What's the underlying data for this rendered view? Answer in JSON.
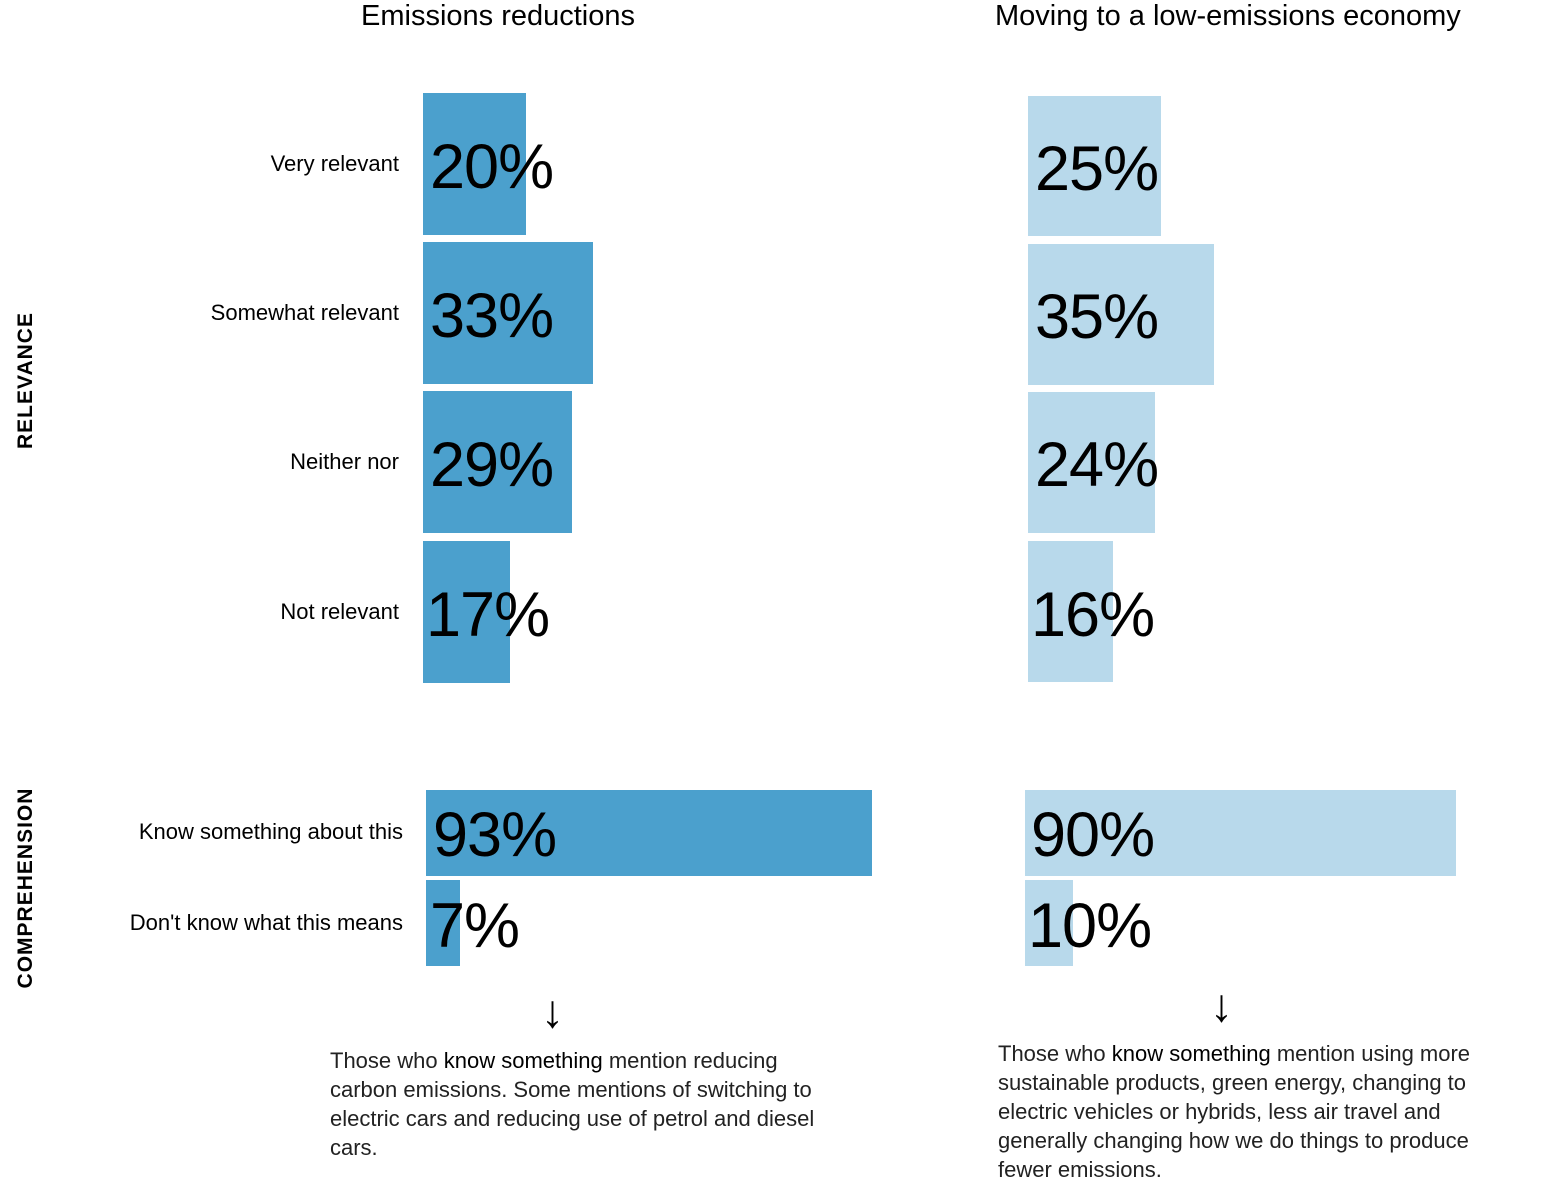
{
  "colors": {
    "left_bar": "#4ba0cd",
    "right_bar": "#b8d9eb"
  },
  "sections": {
    "relevance": "RELEVANCE",
    "comprehension": "COMPREHENSION"
  },
  "chart_data": [
    {
      "type": "bar",
      "orientation": "horizontal",
      "title": "Emissions reductions",
      "categories": [
        "Very relevant",
        "Somewhat relevant",
        "Neither nor",
        "Not relevant",
        "Know something about this",
        "Don't know what this means"
      ],
      "values": [
        20,
        33,
        29,
        17,
        93,
        7
      ],
      "labels": [
        "20%",
        "33%",
        "29%",
        "17%",
        "93%",
        "7%"
      ],
      "unit": "%"
    },
    {
      "type": "bar",
      "orientation": "horizontal",
      "title": "Moving to a low-emissions economy",
      "categories": [
        "Very relevant",
        "Somewhat relevant",
        "Neither nor",
        "Not relevant",
        "Know something about this",
        "Don't know what this means"
      ],
      "values": [
        25,
        35,
        24,
        16,
        90,
        10
      ],
      "labels": [
        "25%",
        "35%",
        "24%",
        "16%",
        "90%",
        "10%"
      ],
      "unit": "%"
    }
  ],
  "notes": [
    {
      "arrow": "↓",
      "prefix": "Those who ",
      "highlight": "know something",
      "suffix": " mention reducing carbon emissions. Some mentions of switching to electric cars and reducing use of petrol and diesel cars."
    },
    {
      "arrow": "↓",
      "prefix": "Those who ",
      "highlight": "know something",
      "suffix": " mention using more sustainable products, green energy, changing to electric vehicles or hybrids, less air travel and generally changing how we do things to produce fewer emissions."
    }
  ]
}
